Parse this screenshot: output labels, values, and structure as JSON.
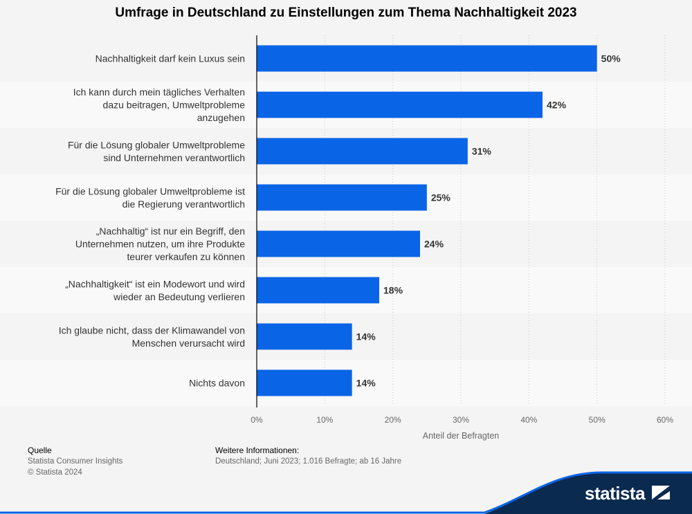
{
  "chart_data": {
    "type": "bar",
    "orientation": "horizontal",
    "title": "Umfrage in Deutschland zu Einstellungen zum Thema Nachhaltigkeit 2023",
    "categories": [
      [
        "Nachhaltigkeit darf kein Luxus sein"
      ],
      [
        "Ich kann durch mein tägliches Verhalten",
        "dazu beitragen, Umweltprobleme",
        "anzugehen"
      ],
      [
        "Für die Lösung globaler Umweltprobleme",
        "sind Unternehmen verantwortlich"
      ],
      [
        "Für die Lösung globaler Umweltprobleme ist",
        "die Regierung verantwortlich"
      ],
      [
        "„Nachhaltig“ ist nur ein Begriff, den",
        "Unternehmen nutzen, um ihre Produkte",
        "teurer verkaufen zu können"
      ],
      [
        "„Nachhaltigkeit“ ist ein Modewort und wird",
        "wieder an Bedeutung verlieren"
      ],
      [
        "Ich glaube nicht, dass der Klimawandel von",
        "Menschen verursacht wird"
      ],
      [
        "Nichts davon"
      ]
    ],
    "values": [
      50,
      42,
      31,
      25,
      24,
      18,
      14,
      14
    ],
    "value_labels": [
      "50%",
      "42%",
      "31%",
      "25%",
      "24%",
      "18%",
      "14%",
      "14%"
    ],
    "xlabel": "Anteil der Befragten",
    "xlim": [
      0,
      60
    ],
    "xticks": [
      "0%",
      "10%",
      "20%",
      "30%",
      "40%",
      "50%",
      "60%"
    ],
    "bar_color": "#0a64e6",
    "grid": "dotted vertical"
  },
  "footer": {
    "source_heading": "Quelle",
    "source_lines": [
      "Statista Consumer Insights",
      "© Statista 2024"
    ],
    "info_heading": "Weitere Informationen:",
    "info_text": "Deutschland; Juni 2023; 1.016 Befragte; ab 16 Jahre"
  },
  "brand": {
    "name": "statista",
    "color": "#0b2a4f",
    "accent": "#0a64e6"
  }
}
